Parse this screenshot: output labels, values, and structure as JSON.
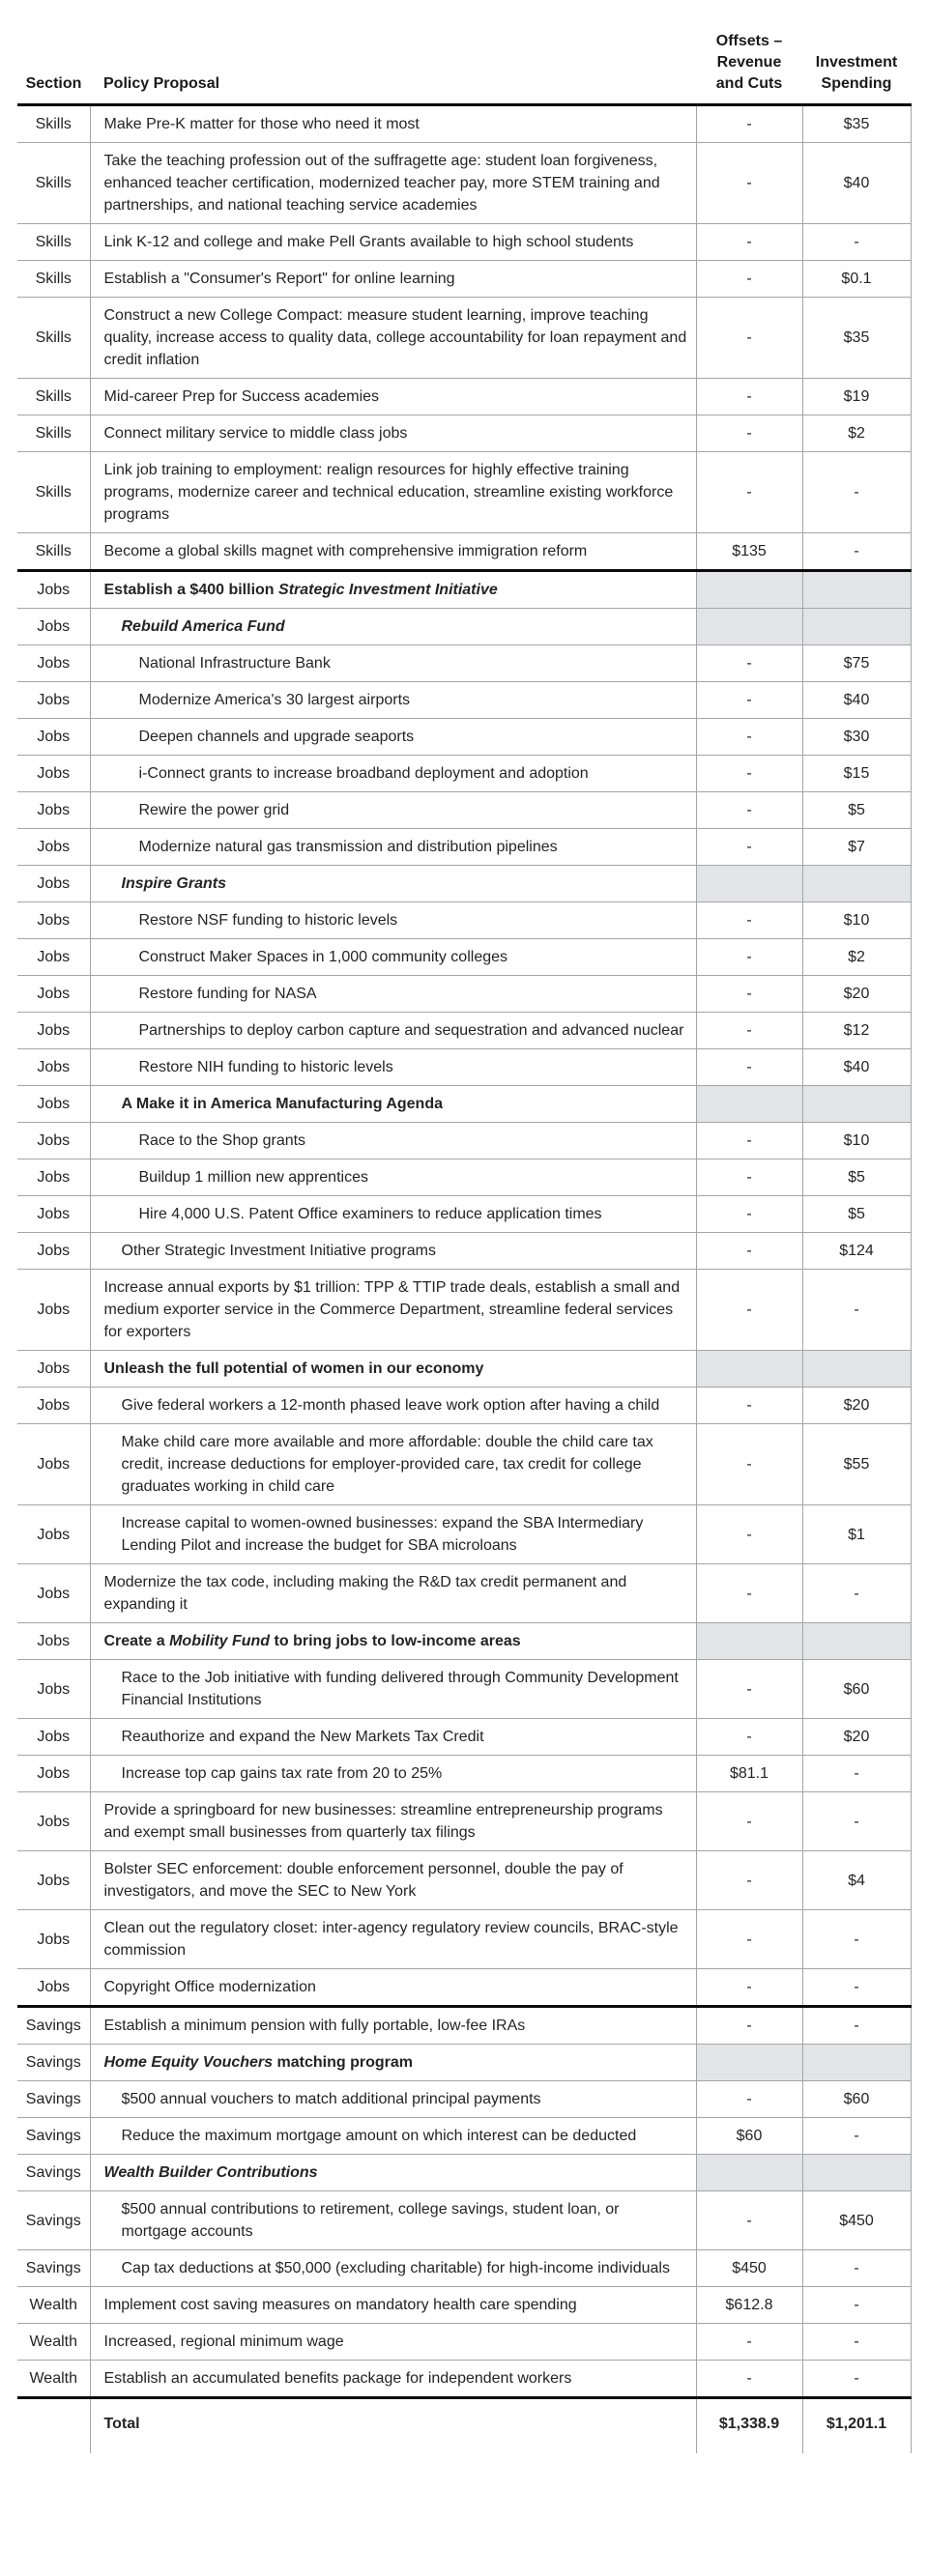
{
  "table": {
    "header": {
      "section": "Section",
      "proposal": "Policy Proposal",
      "offsets": "Offsets –\nRevenue\nand Cuts",
      "investment": "Investment\nSpending"
    },
    "colors": {
      "shade": "#e3e4e8",
      "grid_line": "#a5a5a5",
      "section_divider": "#0b0b0b",
      "text": "#242424"
    },
    "rows": [
      {
        "sec": "Skills",
        "ind": 1,
        "p": "Make Pre-K matter for those who need it most",
        "off": "-",
        "inv": "$35"
      },
      {
        "sec": "Skills",
        "ind": 1,
        "p": "Take the teaching profession out of the suffragette age: student loan forgiveness, enhanced teacher certification, modernized teacher pay, more STEM training and partnerships, and national teaching service academies",
        "off": "-",
        "inv": "$40"
      },
      {
        "sec": "Skills",
        "ind": 1,
        "p": "Link K-12 and college and make Pell Grants available to high school students",
        "off": "-",
        "inv": "-"
      },
      {
        "sec": "Skills",
        "ind": 1,
        "p": "Establish a \"Consumer's Report\" for online learning",
        "off": "-",
        "inv": "$0.1"
      },
      {
        "sec": "Skills",
        "ind": 1,
        "p": "Construct a new College Compact: measure student learning, improve teaching quality, increase access to quality data, college accountability for loan repayment and credit inflation",
        "off": "-",
        "inv": "$35"
      },
      {
        "sec": "Skills",
        "ind": 1,
        "p": "Mid-career Prep for Success academies",
        "off": "-",
        "inv": "$19"
      },
      {
        "sec": "Skills",
        "ind": 1,
        "p": "Connect military service to middle class jobs",
        "off": "-",
        "inv": "$2"
      },
      {
        "sec": "Skills",
        "ind": 1,
        "p": "Link job training to employment: realign resources for highly effective training programs, modernize career and technical education, streamline existing workforce programs",
        "off": "-",
        "inv": "-"
      },
      {
        "sec": "Skills",
        "ind": 1,
        "p": "Become a global skills magnet with comprehensive immigration reform",
        "off": "$135",
        "inv": "-"
      },
      {
        "sec": "Jobs",
        "ind": 1,
        "thick": true,
        "shade": true,
        "p": [
          {
            "t": "Establish a $400 billion ",
            "b": true
          },
          {
            "t": "Strategic Investment Initiative",
            "b": true,
            "i": true
          }
        ],
        "off": "",
        "inv": ""
      },
      {
        "sec": "Jobs",
        "ind": 2,
        "shade": true,
        "p": [
          {
            "t": "Rebuild America Fund",
            "b": true,
            "i": true
          }
        ],
        "off": "",
        "inv": ""
      },
      {
        "sec": "Jobs",
        "ind": 3,
        "p": "National Infrastructure Bank",
        "off": "-",
        "inv": "$75"
      },
      {
        "sec": "Jobs",
        "ind": 3,
        "p": "Modernize America's 30 largest airports",
        "off": "-",
        "inv": "$40"
      },
      {
        "sec": "Jobs",
        "ind": 3,
        "p": "Deepen channels and upgrade seaports",
        "off": "-",
        "inv": "$30"
      },
      {
        "sec": "Jobs",
        "ind": 3,
        "p": "i-Connect grants to increase broadband deployment and adoption",
        "off": "-",
        "inv": "$15"
      },
      {
        "sec": "Jobs",
        "ind": 3,
        "p": "Rewire the power grid",
        "off": "-",
        "inv": "$5"
      },
      {
        "sec": "Jobs",
        "ind": 3,
        "p": "Modernize natural gas transmission and distribution pipelines",
        "off": "-",
        "inv": "$7"
      },
      {
        "sec": "Jobs",
        "ind": 2,
        "shade": true,
        "p": [
          {
            "t": "Inspire Grants",
            "b": true,
            "i": true
          }
        ],
        "off": "",
        "inv": ""
      },
      {
        "sec": "Jobs",
        "ind": 3,
        "p": "Restore NSF funding to historic levels",
        "off": "-",
        "inv": "$10"
      },
      {
        "sec": "Jobs",
        "ind": 3,
        "p": "Construct Maker Spaces in 1,000 community colleges",
        "off": "-",
        "inv": "$2"
      },
      {
        "sec": "Jobs",
        "ind": 3,
        "p": "Restore funding for NASA",
        "off": "-",
        "inv": "$20"
      },
      {
        "sec": "Jobs",
        "ind": 3,
        "p": "Partnerships to deploy carbon capture and sequestration and advanced nuclear",
        "off": "-",
        "inv": "$12"
      },
      {
        "sec": "Jobs",
        "ind": 3,
        "p": "Restore NIH funding to historic levels",
        "off": "-",
        "inv": "$40"
      },
      {
        "sec": "Jobs",
        "ind": 2,
        "shade": true,
        "p": [
          {
            "t": "A Make it in America Manufacturing Agenda",
            "b": true
          }
        ],
        "off": "",
        "inv": ""
      },
      {
        "sec": "Jobs",
        "ind": 3,
        "p": "Race to the Shop grants",
        "off": "-",
        "inv": "$10"
      },
      {
        "sec": "Jobs",
        "ind": 3,
        "p": "Buildup 1 million new apprentices",
        "off": "-",
        "inv": "$5"
      },
      {
        "sec": "Jobs",
        "ind": 3,
        "p": "Hire 4,000 U.S. Patent Office examiners to reduce application times",
        "off": "-",
        "inv": "$5"
      },
      {
        "sec": "Jobs",
        "ind": 2,
        "p": "Other Strategic Investment Initiative programs",
        "off": "-",
        "inv": "$124"
      },
      {
        "sec": "Jobs",
        "ind": 1,
        "p": "Increase annual exports by $1 trillion: TPP & TTIP trade deals, establish a small and medium exporter service in the Commerce Department, streamline federal services for exporters",
        "off": "-",
        "inv": "-"
      },
      {
        "sec": "Jobs",
        "ind": 1,
        "shade": true,
        "p": [
          {
            "t": "Unleash the full potential of women in our economy",
            "b": true
          }
        ],
        "off": "",
        "inv": ""
      },
      {
        "sec": "Jobs",
        "ind": 2,
        "p": "Give federal workers a 12-month phased leave work option after having a child",
        "off": "-",
        "inv": "$20"
      },
      {
        "sec": "Jobs",
        "ind": 2,
        "p": "Make child care more available and more affordable: double the child care tax credit, increase deductions for employer-provided care, tax credit for college graduates working in child care",
        "off": "-",
        "inv": "$55"
      },
      {
        "sec": "Jobs",
        "ind": 2,
        "p": "Increase capital to women-owned businesses: expand the SBA Intermediary Lending Pilot and increase the budget for SBA microloans",
        "off": "-",
        "inv": "$1"
      },
      {
        "sec": "Jobs",
        "ind": 1,
        "p": "Modernize the tax code, including making the R&D tax credit permanent and expanding it",
        "off": "-",
        "inv": "-"
      },
      {
        "sec": "Jobs",
        "ind": 1,
        "shade": true,
        "p": [
          {
            "t": "Create a ",
            "b": true
          },
          {
            "t": "Mobility Fund",
            "b": true,
            "i": true
          },
          {
            "t": " to bring jobs to low-income areas",
            "b": true
          }
        ],
        "off": "",
        "inv": ""
      },
      {
        "sec": "Jobs",
        "ind": 2,
        "p": "Race to the Job initiative with funding delivered through Community Development Financial Institutions",
        "off": "-",
        "inv": "$60"
      },
      {
        "sec": "Jobs",
        "ind": 2,
        "p": "Reauthorize and expand the New Markets Tax Credit",
        "off": "-",
        "inv": "$20"
      },
      {
        "sec": "Jobs",
        "ind": 2,
        "p": "Increase top cap gains tax rate from 20 to 25%",
        "off": "$81.1",
        "inv": "-"
      },
      {
        "sec": "Jobs",
        "ind": 1,
        "p": "Provide a springboard for new businesses: streamline entrepreneurship programs and exempt small businesses from quarterly tax filings",
        "off": "-",
        "inv": "-"
      },
      {
        "sec": "Jobs",
        "ind": 1,
        "p": "Bolster SEC enforcement: double enforcement personnel, double the pay of investigators, and move the SEC to New York",
        "off": "-",
        "inv": "$4"
      },
      {
        "sec": "Jobs",
        "ind": 1,
        "p": "Clean out the regulatory closet: inter-agency regulatory review councils, BRAC-style commission",
        "off": "-",
        "inv": "-"
      },
      {
        "sec": "Jobs",
        "ind": 1,
        "p": "Copyright Office modernization",
        "off": "-",
        "inv": "-"
      },
      {
        "sec": "Savings",
        "ind": 1,
        "thick": true,
        "p": "Establish a minimum pension with fully portable, low-fee IRAs",
        "off": "-",
        "inv": "-"
      },
      {
        "sec": "Savings",
        "ind": 1,
        "shade": true,
        "p": [
          {
            "t": "Home Equity Vouchers",
            "b": true,
            "i": true
          },
          {
            "t": " matching program",
            "b": true
          }
        ],
        "off": "",
        "inv": ""
      },
      {
        "sec": "Savings",
        "ind": 2,
        "p": "$500 annual vouchers to match additional principal payments",
        "off": "-",
        "inv": "$60"
      },
      {
        "sec": "Savings",
        "ind": 2,
        "p": "Reduce the maximum mortgage amount on which interest can be deducted",
        "off": "$60",
        "inv": "-"
      },
      {
        "sec": "Savings",
        "ind": 1,
        "shade": true,
        "p": [
          {
            "t": "Wealth Builder Contributions",
            "b": true,
            "i": true
          }
        ],
        "off": "",
        "inv": ""
      },
      {
        "sec": "Savings",
        "ind": 2,
        "p": "$500 annual contributions to retirement, college savings, student loan, or mortgage accounts",
        "off": "-",
        "inv": "$450"
      },
      {
        "sec": "Savings",
        "ind": 2,
        "p": "Cap tax deductions at $50,000 (excluding charitable) for high-income individuals",
        "off": "$450",
        "inv": "-"
      },
      {
        "sec": "Wealth",
        "ind": 1,
        "p": "Implement cost saving measures on mandatory health care spending",
        "off": "$612.8",
        "inv": "-"
      },
      {
        "sec": "Wealth",
        "ind": 1,
        "p": "Increased, regional minimum wage",
        "off": "-",
        "inv": "-"
      },
      {
        "sec": "Wealth",
        "ind": 1,
        "p": "Establish an accumulated benefits package for independent workers",
        "off": "-",
        "inv": "-"
      }
    ],
    "total": {
      "label": "Total",
      "offsets": "$1,338.9",
      "investment": "$1,201.1"
    }
  }
}
